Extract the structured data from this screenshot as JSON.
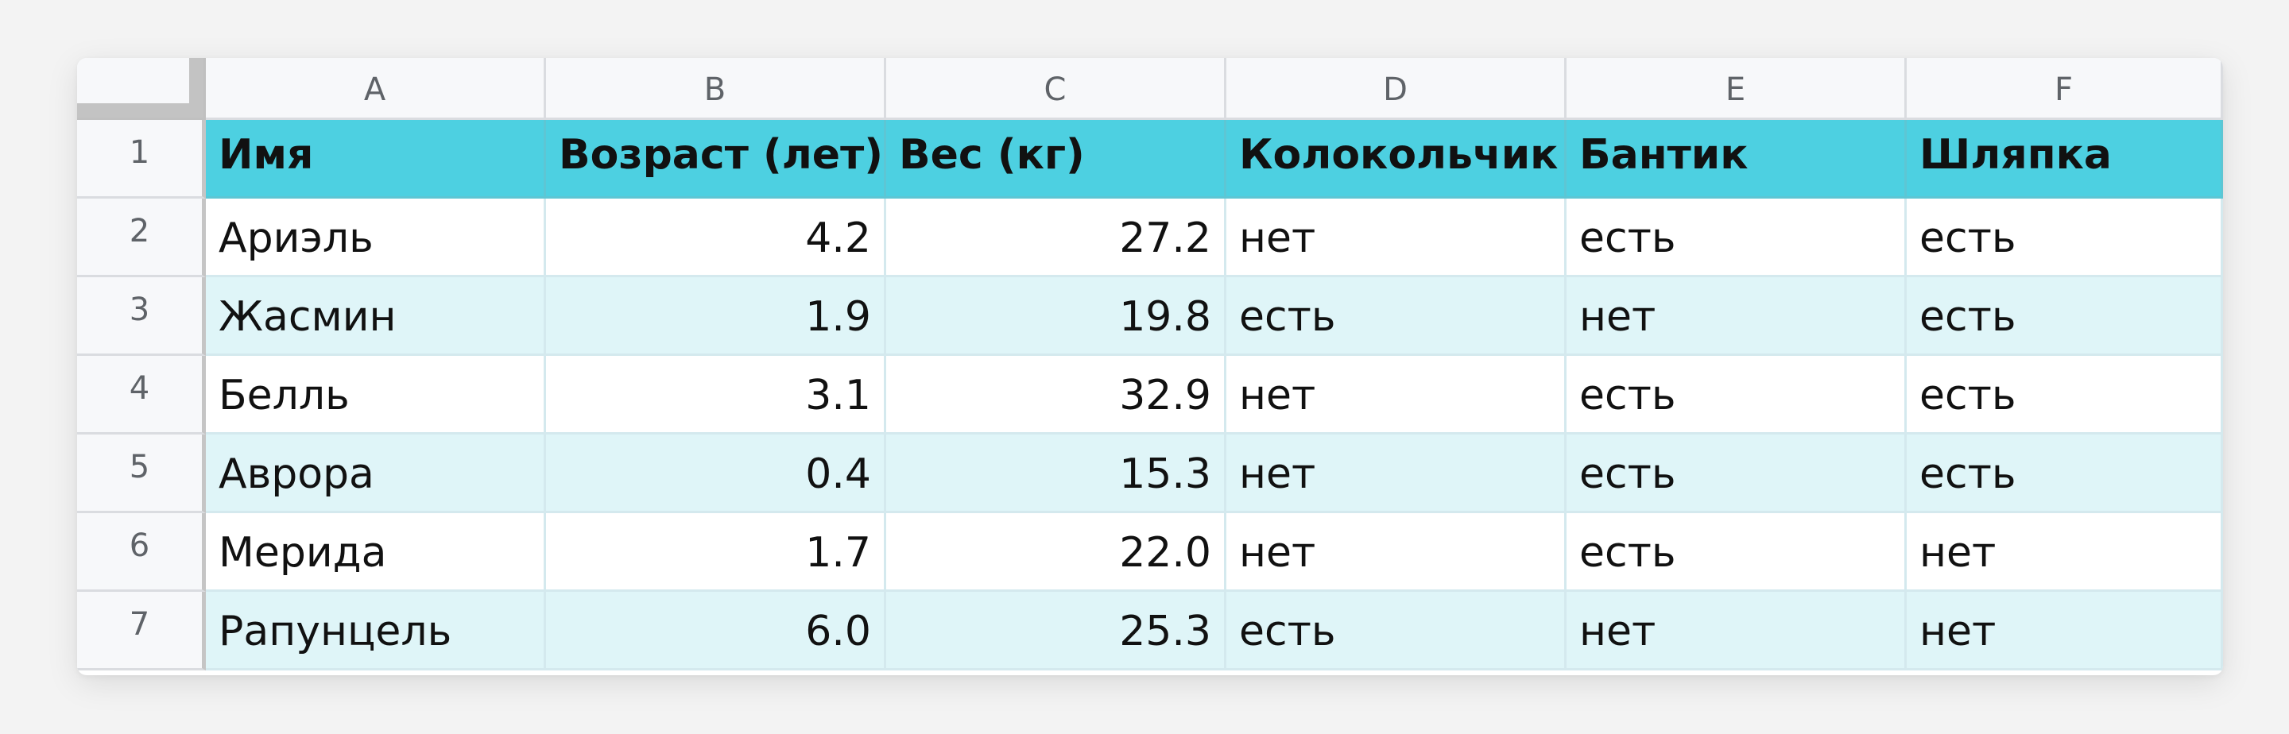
{
  "sheet": {
    "column_headers": [
      "A",
      "B",
      "C",
      "D",
      "E",
      "F"
    ],
    "row_numbers": [
      "1",
      "2",
      "3",
      "4",
      "5",
      "6",
      "7"
    ],
    "header": [
      "Имя",
      "Возраст (лет)",
      "Вес (кг)",
      "Колокольчик",
      "Бантик",
      "Шляпка"
    ],
    "rows": [
      [
        "Ариэль",
        "4.2",
        "27.2",
        "нет",
        "есть",
        "есть"
      ],
      [
        "Жасмин",
        "1.9",
        "19.8",
        "есть",
        "нет",
        "есть"
      ],
      [
        "Белль",
        "3.1",
        "32.9",
        "нет",
        "есть",
        "есть"
      ],
      [
        "Аврора",
        "0.4",
        "15.3",
        "нет",
        "есть",
        "есть"
      ],
      [
        "Мерида",
        "1.7",
        "22.0",
        "нет",
        "есть",
        "нет"
      ],
      [
        "Рапунцель",
        "6.0",
        "25.3",
        "есть",
        "нет",
        "нет"
      ]
    ],
    "colors": {
      "header_fill": "#4dd0e1",
      "band_fill": "#dff5f8",
      "row_fill": "#ffffff"
    }
  }
}
